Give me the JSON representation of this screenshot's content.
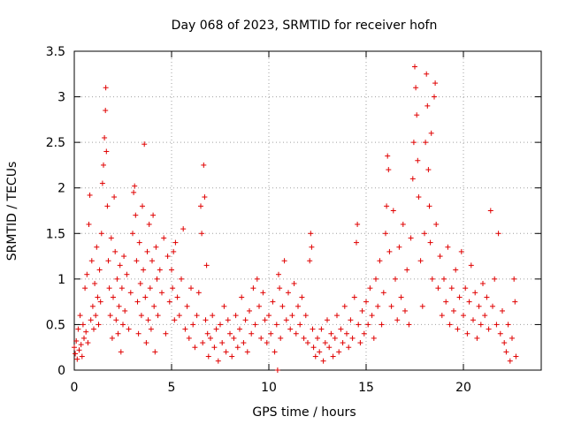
{
  "chart_data": {
    "type": "scatter",
    "title": "Day 068 of 2023, SRMTID for receiver hofn",
    "xlabel": "GPS time / hours",
    "ylabel": "SRMTID / TECUs",
    "xlim": [
      0,
      24
    ],
    "ylim": [
      0,
      3.5
    ],
    "xticks": [
      0,
      5,
      10,
      15,
      20
    ],
    "yticks": [
      0,
      0.5,
      1,
      1.5,
      2,
      2.5,
      3,
      3.5
    ],
    "xtick_labels": [
      "0",
      "5",
      "10",
      "15",
      "20"
    ],
    "ytick_labels": [
      "0",
      "0.5",
      "1",
      "1.5",
      "2",
      "2.5",
      "3",
      "3.5"
    ],
    "grid": true,
    "marker": "+",
    "series_color": "#e00000",
    "series": [
      {
        "name": "SRMTID",
        "points": [
          [
            0.0,
            0.25
          ],
          [
            0.05,
            0.18
          ],
          [
            0.1,
            0.32
          ],
          [
            0.15,
            0.12
          ],
          [
            0.2,
            0.45
          ],
          [
            0.25,
            0.22
          ],
          [
            0.3,
            0.6
          ],
          [
            0.35,
            0.28
          ],
          [
            0.4,
            0.15
          ],
          [
            0.45,
            0.5
          ],
          [
            0.5,
            0.35
          ],
          [
            0.55,
            0.9
          ],
          [
            0.6,
            0.42
          ],
          [
            0.65,
            1.05
          ],
          [
            0.7,
            0.3
          ],
          [
            0.75,
            1.6
          ],
          [
            0.8,
            1.92
          ],
          [
            0.85,
            0.55
          ],
          [
            0.9,
            1.2
          ],
          [
            0.95,
            0.7
          ],
          [
            1.0,
            0.45
          ],
          [
            1.05,
            0.95
          ],
          [
            1.1,
            0.6
          ],
          [
            1.15,
            1.35
          ],
          [
            1.2,
            0.8
          ],
          [
            1.25,
            0.5
          ],
          [
            1.3,
            1.1
          ],
          [
            1.35,
            0.75
          ],
          [
            1.4,
            1.5
          ],
          [
            1.45,
            2.05
          ],
          [
            1.5,
            2.25
          ],
          [
            1.55,
            2.55
          ],
          [
            1.6,
            2.85
          ],
          [
            1.62,
            3.1
          ],
          [
            1.65,
            2.4
          ],
          [
            1.7,
            1.8
          ],
          [
            1.75,
            1.2
          ],
          [
            1.8,
            0.9
          ],
          [
            1.85,
            0.6
          ],
          [
            1.9,
            1.45
          ],
          [
            1.95,
            0.35
          ],
          [
            2.0,
            0.8
          ],
          [
            2.05,
            1.9
          ],
          [
            2.1,
            1.3
          ],
          [
            2.15,
            0.55
          ],
          [
            2.2,
            1.0
          ],
          [
            2.25,
            0.4
          ],
          [
            2.3,
            0.7
          ],
          [
            2.35,
            1.15
          ],
          [
            2.4,
            0.2
          ],
          [
            2.45,
            0.9
          ],
          [
            2.5,
            0.5
          ],
          [
            2.55,
            1.25
          ],
          [
            2.6,
            0.65
          ],
          [
            2.7,
            1.05
          ],
          [
            2.8,
            0.45
          ],
          [
            2.9,
            0.85
          ],
          [
            3.0,
            1.5
          ],
          [
            3.05,
            1.95
          ],
          [
            3.1,
            2.02
          ],
          [
            3.15,
            1.7
          ],
          [
            3.2,
            1.2
          ],
          [
            3.25,
            0.75
          ],
          [
            3.3,
            0.4
          ],
          [
            3.35,
            1.4
          ],
          [
            3.4,
            0.95
          ],
          [
            3.45,
            0.6
          ],
          [
            3.5,
            1.8
          ],
          [
            3.55,
            1.1
          ],
          [
            3.6,
            2.48
          ],
          [
            3.65,
            0.8
          ],
          [
            3.7,
            0.3
          ],
          [
            3.75,
            1.3
          ],
          [
            3.8,
            0.55
          ],
          [
            3.85,
            1.6
          ],
          [
            3.9,
            0.9
          ],
          [
            3.95,
            0.45
          ],
          [
            4.0,
            1.2
          ],
          [
            4.05,
            1.7
          ],
          [
            4.1,
            0.7
          ],
          [
            4.15,
            0.2
          ],
          [
            4.2,
            1.35
          ],
          [
            4.25,
            1.0
          ],
          [
            4.3,
            0.6
          ],
          [
            4.4,
            1.1
          ],
          [
            4.5,
            0.85
          ],
          [
            4.6,
            1.45
          ],
          [
            4.7,
            0.4
          ],
          [
            4.8,
            1.25
          ],
          [
            4.9,
            0.75
          ],
          [
            5.0,
            1.1
          ],
          [
            5.05,
            0.9
          ],
          [
            5.1,
            1.3
          ],
          [
            5.15,
            0.55
          ],
          [
            5.2,
            1.4
          ],
          [
            5.3,
            0.8
          ],
          [
            5.4,
            0.6
          ],
          [
            5.5,
            1.0
          ],
          [
            5.6,
            1.55
          ],
          [
            5.7,
            0.45
          ],
          [
            5.8,
            0.7
          ],
          [
            5.9,
            0.35
          ],
          [
            6.0,
            0.9
          ],
          [
            6.1,
            0.5
          ],
          [
            6.2,
            0.25
          ],
          [
            6.3,
            0.6
          ],
          [
            6.4,
            0.85
          ],
          [
            6.5,
            1.8
          ],
          [
            6.55,
            1.5
          ],
          [
            6.6,
            0.3
          ],
          [
            6.65,
            2.25
          ],
          [
            6.7,
            1.9
          ],
          [
            6.75,
            0.55
          ],
          [
            6.8,
            1.15
          ],
          [
            6.85,
            0.4
          ],
          [
            6.9,
            0.15
          ],
          [
            7.0,
            0.35
          ],
          [
            7.1,
            0.6
          ],
          [
            7.2,
            0.25
          ],
          [
            7.3,
            0.45
          ],
          [
            7.4,
            0.1
          ],
          [
            7.5,
            0.5
          ],
          [
            7.6,
            0.3
          ],
          [
            7.7,
            0.7
          ],
          [
            7.8,
            0.2
          ],
          [
            7.9,
            0.55
          ],
          [
            8.0,
            0.4
          ],
          [
            8.1,
            0.15
          ],
          [
            8.2,
            0.35
          ],
          [
            8.3,
            0.6
          ],
          [
            8.4,
            0.25
          ],
          [
            8.5,
            0.45
          ],
          [
            8.6,
            0.8
          ],
          [
            8.7,
            0.3
          ],
          [
            8.8,
            0.55
          ],
          [
            8.9,
            0.2
          ],
          [
            9.0,
            0.65
          ],
          [
            9.1,
            0.4
          ],
          [
            9.2,
            0.9
          ],
          [
            9.3,
            0.5
          ],
          [
            9.4,
            1.0
          ],
          [
            9.5,
            0.7
          ],
          [
            9.6,
            0.35
          ],
          [
            9.7,
            0.85
          ],
          [
            9.8,
            0.55
          ],
          [
            9.9,
            0.3
          ],
          [
            10.0,
            0.6
          ],
          [
            10.1,
            0.4
          ],
          [
            10.2,
            0.75
          ],
          [
            10.3,
            0.2
          ],
          [
            10.4,
            0.5
          ],
          [
            10.45,
            0.0
          ],
          [
            10.5,
            1.05
          ],
          [
            10.55,
            0.9
          ],
          [
            10.6,
            0.35
          ],
          [
            10.7,
            0.7
          ],
          [
            10.8,
            1.2
          ],
          [
            10.9,
            0.55
          ],
          [
            11.0,
            0.85
          ],
          [
            11.1,
            0.45
          ],
          [
            11.2,
            0.6
          ],
          [
            11.3,
            0.95
          ],
          [
            11.4,
            0.4
          ],
          [
            11.5,
            0.7
          ],
          [
            11.6,
            0.5
          ],
          [
            11.7,
            0.8
          ],
          [
            11.8,
            0.35
          ],
          [
            11.9,
            0.6
          ],
          [
            12.0,
            0.3
          ],
          [
            12.1,
            1.2
          ],
          [
            12.15,
            1.5
          ],
          [
            12.2,
            1.35
          ],
          [
            12.25,
            0.45
          ],
          [
            12.3,
            0.25
          ],
          [
            12.4,
            0.15
          ],
          [
            12.5,
            0.35
          ],
          [
            12.6,
            0.2
          ],
          [
            12.7,
            0.45
          ],
          [
            12.8,
            0.1
          ],
          [
            12.9,
            0.3
          ],
          [
            13.0,
            0.55
          ],
          [
            13.1,
            0.25
          ],
          [
            13.2,
            0.4
          ],
          [
            13.3,
            0.15
          ],
          [
            13.4,
            0.35
          ],
          [
            13.5,
            0.6
          ],
          [
            13.6,
            0.2
          ],
          [
            13.7,
            0.45
          ],
          [
            13.8,
            0.3
          ],
          [
            13.9,
            0.7
          ],
          [
            14.0,
            0.4
          ],
          [
            14.1,
            0.25
          ],
          [
            14.2,
            0.55
          ],
          [
            14.3,
            0.35
          ],
          [
            14.4,
            0.8
          ],
          [
            14.5,
            1.4
          ],
          [
            14.55,
            1.6
          ],
          [
            14.6,
            0.5
          ],
          [
            14.7,
            0.3
          ],
          [
            14.8,
            0.65
          ],
          [
            14.9,
            0.4
          ],
          [
            15.0,
            0.75
          ],
          [
            15.1,
            0.5
          ],
          [
            15.2,
            0.9
          ],
          [
            15.3,
            0.6
          ],
          [
            15.4,
            0.35
          ],
          [
            15.5,
            1.0
          ],
          [
            15.6,
            0.7
          ],
          [
            15.7,
            1.2
          ],
          [
            15.8,
            0.5
          ],
          [
            15.9,
            0.85
          ],
          [
            16.0,
            1.5
          ],
          [
            16.05,
            1.8
          ],
          [
            16.1,
            2.35
          ],
          [
            16.15,
            2.2
          ],
          [
            16.2,
            1.3
          ],
          [
            16.3,
            0.7
          ],
          [
            16.4,
            1.75
          ],
          [
            16.5,
            1.0
          ],
          [
            16.6,
            0.55
          ],
          [
            16.7,
            1.35
          ],
          [
            16.8,
            0.8
          ],
          [
            16.9,
            1.6
          ],
          [
            17.0,
            0.65
          ],
          [
            17.1,
            1.1
          ],
          [
            17.2,
            0.5
          ],
          [
            17.3,
            1.45
          ],
          [
            17.4,
            2.1
          ],
          [
            17.45,
            2.5
          ],
          [
            17.5,
            3.33
          ],
          [
            17.55,
            3.1
          ],
          [
            17.6,
            2.8
          ],
          [
            17.65,
            2.3
          ],
          [
            17.7,
            1.9
          ],
          [
            17.8,
            1.2
          ],
          [
            17.9,
            0.7
          ],
          [
            18.0,
            1.5
          ],
          [
            18.05,
            2.5
          ],
          [
            18.1,
            3.25
          ],
          [
            18.15,
            2.9
          ],
          [
            18.2,
            2.2
          ],
          [
            18.25,
            1.8
          ],
          [
            18.3,
            1.4
          ],
          [
            18.35,
            2.6
          ],
          [
            18.4,
            1.0
          ],
          [
            18.5,
            3.0
          ],
          [
            18.55,
            3.15
          ],
          [
            18.6,
            1.6
          ],
          [
            18.7,
            0.9
          ],
          [
            18.8,
            1.25
          ],
          [
            18.9,
            0.6
          ],
          [
            19.0,
            1.0
          ],
          [
            19.1,
            0.75
          ],
          [
            19.2,
            1.35
          ],
          [
            19.3,
            0.5
          ],
          [
            19.4,
            0.9
          ],
          [
            19.5,
            0.65
          ],
          [
            19.6,
            1.1
          ],
          [
            19.7,
            0.45
          ],
          [
            19.8,
            0.8
          ],
          [
            19.9,
            1.3
          ],
          [
            20.0,
            0.6
          ],
          [
            20.1,
            0.9
          ],
          [
            20.2,
            0.4
          ],
          [
            20.3,
            0.75
          ],
          [
            20.4,
            1.15
          ],
          [
            20.5,
            0.55
          ],
          [
            20.6,
            0.85
          ],
          [
            20.7,
            0.35
          ],
          [
            20.8,
            0.7
          ],
          [
            20.9,
            0.5
          ],
          [
            21.0,
            0.95
          ],
          [
            21.1,
            0.6
          ],
          [
            21.2,
            0.8
          ],
          [
            21.3,
            0.45
          ],
          [
            21.4,
            1.75
          ],
          [
            21.5,
            0.7
          ],
          [
            21.6,
            1.0
          ],
          [
            21.7,
            0.5
          ],
          [
            21.8,
            1.5
          ],
          [
            21.9,
            0.4
          ],
          [
            22.0,
            0.65
          ],
          [
            22.1,
            0.3
          ],
          [
            22.2,
            0.2
          ],
          [
            22.3,
            0.5
          ],
          [
            22.4,
            0.1
          ],
          [
            22.5,
            0.35
          ],
          [
            22.6,
            1.0
          ],
          [
            22.65,
            0.75
          ],
          [
            22.7,
            0.15
          ]
        ]
      }
    ]
  }
}
